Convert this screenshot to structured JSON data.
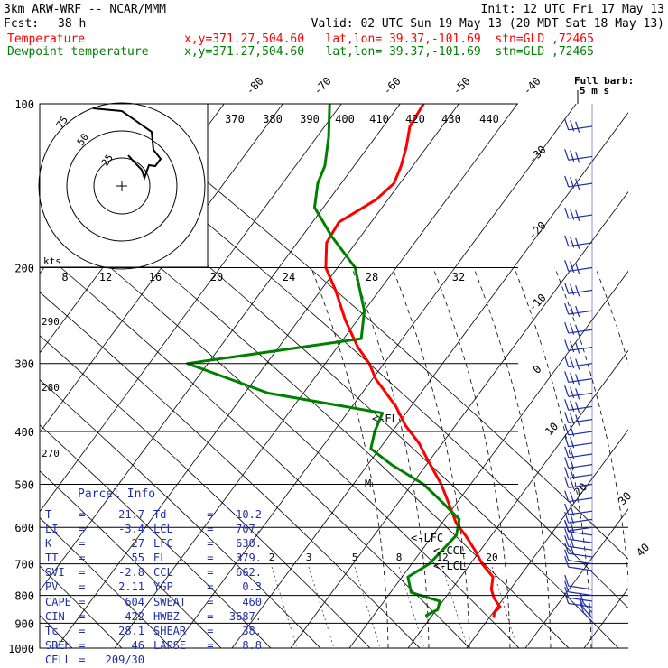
{
  "header": {
    "line1_left": "3km ARW-WRF -- NCAR/MMM",
    "line1_right": "Init: 12 UTC Fri 17 May 13",
    "fcst_label": "Fcst:",
    "fcst_value": "38 h",
    "valid": "Valid: 02 UTC Sun 19 May 13 (20 MDT Sat 18 May 13)",
    "temp_label": "Temperature",
    "temp_info": "x,y=371.27,504.60   lat,lon= 39.37,-101.69  stn=GLD ,72465",
    "dew_label": "Dewpoint temperature",
    "dew_info": "x,y=371.27,504.60   lat,lon= 39.37,-101.69  stn=GLD ,72465",
    "barb_label_1": "Full barb:",
    "barb_label_2": "5 m s"
  },
  "colors": {
    "temperature": "#ff0000",
    "dewpoint": "#008000",
    "parcel": "#1f2ea8",
    "axis": "#000000"
  },
  "pressure_labels": [
    "100",
    "200",
    "300",
    "400",
    "500",
    "600",
    "700",
    "800",
    "900",
    "1000"
  ],
  "isotherm_labels": [
    "-80",
    "-70",
    "-60",
    "-50",
    "-40",
    "-30",
    "-20",
    "-10",
    "0",
    "10",
    "20",
    "30",
    "40"
  ],
  "theta_labels": [
    "370",
    "380",
    "390",
    "400",
    "410",
    "420",
    "430",
    "440"
  ],
  "hodo_speed_labels": [
    "8",
    "12",
    "16",
    "20",
    "24",
    "28",
    "32"
  ],
  "hodo_ring_labels": [
    "75",
    "50",
    "25"
  ],
  "hodo_unit": "kts",
  "mixing_ratio_labels": [
    "2",
    "3",
    "5",
    "8",
    "12",
    "20"
  ],
  "dry_adiabat_labels": [
    "290",
    "280",
    "270"
  ],
  "levels": {
    "el": "<-EL",
    "lfc": "<-LFC",
    "lcl": "<-LCL",
    "ccl": "<-CCL",
    "m": "M"
  },
  "parcel": {
    "title": "Parcel Info",
    "rows": [
      [
        "T",
        "21.7",
        "Td",
        "10.2"
      ],
      [
        "LI",
        "-3.4",
        "LCL",
        "707."
      ],
      [
        "K",
        "27",
        "LFC",
        "630."
      ],
      [
        "TT",
        "55",
        "EL",
        "379."
      ],
      [
        "SVI",
        "-2.8",
        "CCL",
        "662."
      ],
      [
        "PV",
        "2.11",
        "YGP",
        "0.3"
      ],
      [
        "CAPE",
        "604",
        "SWEAT",
        "460"
      ],
      [
        "CIN",
        "-422",
        "HWBZ",
        "3687."
      ],
      [
        "Tc",
        "28.1",
        "SHEAR",
        "38."
      ],
      [
        "SREH",
        "46",
        "LAPSE",
        "8.8"
      ],
      [
        "CELL",
        "209/30",
        "",
        ""
      ]
    ]
  },
  "chart_data": {
    "type": "line",
    "title": "",
    "xlabel": "",
    "ylabel": "",
    "y_scale": "log",
    "ylim": [
      1000,
      100
    ],
    "series": [
      {
        "name": "Temperature",
        "pressure": [
          880,
          860,
          840,
          810,
          780,
          740,
          700,
          660,
          620,
          590,
          540,
          500,
          450,
          420,
          390,
          360,
          320,
          300,
          280,
          250,
          220,
          200,
          180,
          165,
          150,
          140,
          130,
          120,
          110,
          100
        ],
        "temperature": [
          20.8,
          20.2,
          20.5,
          18.4,
          16.8,
          15.5,
          12.0,
          9.0,
          5.5,
          2.5,
          -1.5,
          -5.0,
          -10.5,
          -14.0,
          -18.5,
          -22.5,
          -29.5,
          -32.5,
          -36.5,
          -42.0,
          -47.5,
          -52.0,
          -55.0,
          -55.5,
          -52.0,
          -51.0,
          -52.0,
          -53.5,
          -55.5,
          -56.0
        ]
      },
      {
        "name": "Dewpoint temperature",
        "pressure": [
          880,
          870,
          850,
          820,
          790,
          740,
          700,
          660,
          620,
          580,
          540,
          500,
          460,
          430,
          400,
          370,
          340,
          300,
          270,
          240,
          200,
          175,
          155,
          140,
          130,
          115,
          100
        ],
        "temperature": [
          9.5,
          9.0,
          10.2,
          9.5,
          3.5,
          1.0,
          3.0,
          3.5,
          4.0,
          2.5,
          -2.5,
          -8.0,
          -16.0,
          -21.5,
          -23.0,
          -24.0,
          -46.0,
          -63.5,
          -37.0,
          -40.0,
          -47.0,
          -55.0,
          -61.5,
          -64.0,
          -65.0,
          -68.0,
          -72.0
        ]
      }
    ],
    "wind_barbs": {
      "pressure": [
        895,
        880,
        860,
        840,
        820,
        800,
        780,
        720,
        700,
        680,
        660,
        640,
        620,
        600,
        580,
        560,
        530,
        500,
        480,
        460,
        440,
        420,
        400,
        380,
        360,
        340,
        320,
        300,
        280,
        260,
        240,
        220,
        200,
        180,
        160,
        140,
        125,
        110
      ],
      "note": "wind profile plotted as barbs along right margin"
    }
  }
}
